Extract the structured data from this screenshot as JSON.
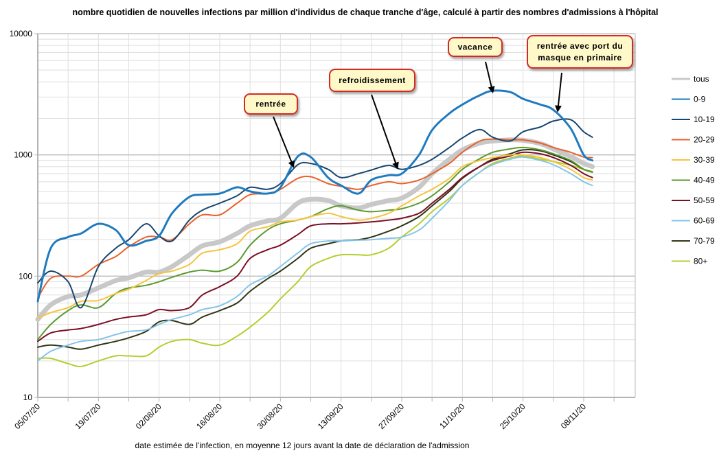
{
  "chart_data": {
    "type": "line",
    "title": "nombre quotidien de nouvelles infections par million d'individus de chaque tranche d'âge, calculé à partir des nombres d'admissions à l'hôpital",
    "xlabel": "date estimée de l'infection, en moyenne 12 jours avant la date de déclaration de l'admission",
    "ylabel": "",
    "yscale": "log",
    "ylim": [
      10,
      10000
    ],
    "y_ticks": [
      "10",
      "100",
      "1000",
      "10000"
    ],
    "x_range_days": [
      0,
      140
    ],
    "x_tick_labels": [
      "05/07/20",
      "19/07/20",
      "02/08/20",
      "16/08/20",
      "30/08/20",
      "13/09/20",
      "27/09/20",
      "11/10/20",
      "25/10/20",
      "08/11/20"
    ],
    "x_tick_days": [
      0,
      14,
      28,
      42,
      56,
      70,
      84,
      98,
      112,
      126
    ],
    "x_minor_tick_step_days": 7,
    "grid": true,
    "legend_position": "right",
    "x_days": [
      0,
      3,
      7,
      10,
      14,
      18,
      21,
      25,
      28,
      31,
      35,
      38,
      42,
      46,
      49,
      53,
      56,
      60,
      63,
      67,
      70,
      74,
      77,
      81,
      84,
      88,
      91,
      95,
      98,
      102,
      105,
      109,
      112,
      116,
      119,
      123,
      126,
      128
    ],
    "series": [
      {
        "name": "tous",
        "color": "#c8c8c8",
        "width": 7,
        "values": [
          44,
          58,
          68,
          70,
          80,
          92,
          97,
          108,
          108,
          120,
          150,
          178,
          192,
          225,
          260,
          285,
          300,
          400,
          430,
          420,
          380,
          365,
          390,
          420,
          440,
          540,
          700,
          920,
          1100,
          1250,
          1300,
          1330,
          1320,
          1240,
          1120,
          970,
          850,
          800
        ]
      },
      {
        "name": "0-9",
        "color": "#1f7bbf",
        "width": 3,
        "values": [
          62,
          170,
          210,
          225,
          270,
          240,
          180,
          195,
          215,
          330,
          450,
          470,
          480,
          540,
          500,
          480,
          540,
          970,
          960,
          650,
          560,
          480,
          620,
          680,
          700,
          1000,
          1600,
          2200,
          2600,
          3100,
          3380,
          3300,
          2900,
          2600,
          2350,
          1650,
          1000,
          900
        ]
      },
      {
        "name": "10-19",
        "color": "#17466e",
        "width": 2,
        "values": [
          88,
          110,
          90,
          55,
          120,
          170,
          200,
          270,
          215,
          195,
          290,
          350,
          400,
          460,
          540,
          520,
          580,
          830,
          850,
          760,
          650,
          700,
          750,
          820,
          760,
          820,
          920,
          1150,
          1380,
          1620,
          1400,
          1300,
          1550,
          1700,
          1900,
          1950,
          1550,
          1400
        ]
      },
      {
        "name": "20-29",
        "color": "#e8612c",
        "width": 2,
        "values": [
          66,
          96,
          100,
          100,
          125,
          145,
          175,
          210,
          210,
          200,
          270,
          320,
          320,
          400,
          470,
          480,
          520,
          640,
          660,
          580,
          550,
          520,
          560,
          600,
          580,
          620,
          700,
          850,
          1050,
          1300,
          1350,
          1330,
          1330,
          1250,
          1150,
          1050,
          960,
          950
        ]
      },
      {
        "name": "30-39",
        "color": "#f5c43c",
        "width": 2,
        "values": [
          45,
          50,
          55,
          62,
          63,
          72,
          78,
          92,
          105,
          110,
          125,
          155,
          165,
          185,
          235,
          255,
          280,
          290,
          310,
          330,
          310,
          290,
          300,
          330,
          380,
          460,
          520,
          640,
          800,
          900,
          950,
          1000,
          1000,
          950,
          880,
          760,
          650,
          620
        ]
      },
      {
        "name": "40-49",
        "color": "#5a9a2f",
        "width": 2,
        "values": [
          30,
          40,
          52,
          58,
          55,
          72,
          80,
          84,
          90,
          98,
          108,
          112,
          110,
          130,
          180,
          240,
          270,
          290,
          310,
          360,
          380,
          350,
          340,
          350,
          360,
          400,
          460,
          600,
          760,
          930,
          1050,
          1120,
          1150,
          1100,
          1020,
          900,
          760,
          720
        ]
      },
      {
        "name": "50-59",
        "color": "#7a0f26",
        "width": 2,
        "values": [
          29,
          34,
          36,
          37,
          40,
          44,
          46,
          48,
          53,
          52,
          55,
          70,
          82,
          100,
          140,
          165,
          180,
          220,
          260,
          270,
          270,
          275,
          280,
          290,
          300,
          330,
          400,
          520,
          650,
          800,
          900,
          980,
          1050,
          1020,
          950,
          820,
          700,
          650
        ]
      },
      {
        "name": "60-69",
        "color": "#85c4ea",
        "width": 2,
        "values": [
          20,
          24,
          27,
          29,
          30,
          33,
          35,
          36,
          40,
          44,
          48,
          53,
          57,
          68,
          85,
          100,
          120,
          155,
          185,
          195,
          195,
          198,
          200,
          205,
          210,
          240,
          300,
          420,
          560,
          720,
          830,
          920,
          960,
          900,
          830,
          700,
          600,
          560
        ]
      },
      {
        "name": "70-79",
        "color": "#2e3512",
        "width": 2,
        "values": [
          26,
          27,
          26,
          25,
          27,
          29,
          31,
          35,
          42,
          43,
          40,
          46,
          52,
          60,
          75,
          95,
          110,
          140,
          170,
          185,
          195,
          200,
          210,
          235,
          260,
          310,
          380,
          500,
          640,
          800,
          920,
          1020,
          1100,
          1080,
          1000,
          880,
          760,
          720
        ]
      },
      {
        "name": "80+",
        "color": "#b3cf2e",
        "width": 2,
        "values": [
          21,
          21,
          19,
          18,
          20,
          22,
          22,
          22,
          26,
          29,
          30,
          28,
          27,
          32,
          38,
          50,
          65,
          90,
          120,
          140,
          150,
          150,
          150,
          170,
          210,
          270,
          340,
          440,
          560,
          720,
          850,
          940,
          980,
          920,
          880,
          820,
          760,
          730
        ]
      }
    ],
    "annotations": [
      {
        "text": "rentrée",
        "target_day": 59,
        "target_value": 800
      },
      {
        "text": "refroidissement",
        "target_day": 83,
        "target_value": 780
      },
      {
        "text": "vacance",
        "target_day": 105,
        "target_value": 3300
      },
      {
        "text": "rentrée avec port du masque en primaire",
        "lines": [
          "rentrée avec port du",
          "masque en primaire"
        ],
        "target_day": 120,
        "target_value": 2300
      }
    ]
  },
  "colors": {
    "grid_major": "#b8b8b8",
    "grid_minor": "#dedede",
    "axis": "#b3b3b3",
    "callout_fill": "#fff8c8",
    "callout_border": "#d42a20",
    "arrow": "#000000"
  }
}
